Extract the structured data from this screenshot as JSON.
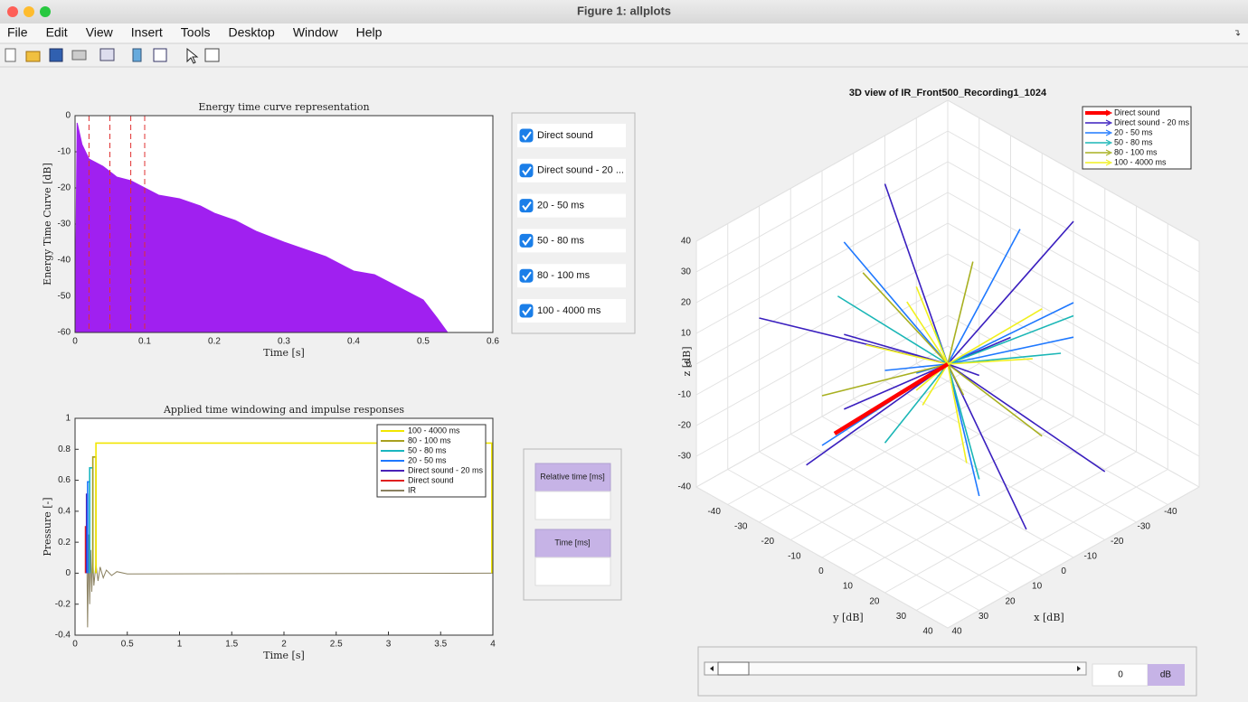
{
  "window": {
    "title": "Figure 1: allplots"
  },
  "menu": [
    "File",
    "Edit",
    "View",
    "Insert",
    "Tools",
    "Desktop",
    "Window",
    "Help"
  ],
  "etc_plot": {
    "type": "area",
    "title": "Energy time curve representation",
    "xlabel": "Time [s]",
    "ylabel": "Energy Time Curve [dB]",
    "xlim": [
      0,
      0.6
    ],
    "ylim": [
      -60,
      0
    ],
    "xticks": [
      0,
      0.1,
      0.2,
      0.3,
      0.4,
      0.5,
      0.6
    ],
    "yticks": [
      -60,
      -50,
      -40,
      -30,
      -20,
      -10,
      0
    ],
    "color": "#a020f0",
    "x": [
      0,
      0.003,
      0.01,
      0.02,
      0.04,
      0.06,
      0.08,
      0.1,
      0.12,
      0.15,
      0.18,
      0.2,
      0.23,
      0.26,
      0.3,
      0.33,
      0.36,
      0.4,
      0.43,
      0.46,
      0.5,
      0.52,
      0.535
    ],
    "values": [
      -60,
      -2,
      -8,
      -12,
      -14,
      -17,
      -18,
      -20,
      -22,
      -23,
      -25,
      -27,
      -29,
      -32,
      -35,
      -37,
      -39,
      -43,
      -44,
      -47,
      -51,
      -56,
      -60
    ],
    "window_boundaries": [
      0,
      0.02,
      0.05,
      0.08,
      0.1
    ],
    "boundary_color": "#e03030"
  },
  "checkboxes": [
    {
      "label": "Direct sound",
      "checked": true
    },
    {
      "label": "Direct sound - 20 ...",
      "checked": true
    },
    {
      "label": "20 - 50 ms",
      "checked": true
    },
    {
      "label": "50 - 80 ms",
      "checked": true
    },
    {
      "label": "80 - 100 ms",
      "checked": true
    },
    {
      "label": "100 - 4000 ms",
      "checked": true
    }
  ],
  "window_plot": {
    "type": "line",
    "title": "Applied time windowing and impulse responses",
    "xlabel": "Time [s]",
    "ylabel": "Pressure [-]",
    "xlim": [
      0,
      4
    ],
    "ylim": [
      -0.4,
      1
    ],
    "xticks": [
      0,
      0.5,
      1,
      1.5,
      2,
      2.5,
      3,
      3.5,
      4
    ],
    "yticks": [
      -0.4,
      -0.2,
      0,
      0.2,
      0.4,
      0.6,
      0.8,
      1
    ],
    "series": [
      {
        "name": "100 - 4000 ms",
        "color": "#f2e600",
        "x": [
          0.2,
          0.2,
          3.99,
          3.99
        ],
        "values": [
          0,
          0.84,
          0.84,
          0
        ]
      },
      {
        "name": "80 - 100 ms",
        "color": "#a8a020",
        "x": [
          0.17,
          0.17,
          0.2,
          0.2
        ],
        "values": [
          0,
          0.75,
          0.75,
          0
        ]
      },
      {
        "name": "50 - 80 ms",
        "color": "#1ab6c0",
        "x": [
          0.14,
          0.14,
          0.17,
          0.17
        ],
        "values": [
          0,
          0.68,
          0.68,
          0
        ]
      },
      {
        "name": "20 - 50 ms",
        "color": "#1e78ff",
        "x": [
          0.12,
          0.12,
          0.14,
          0.14
        ],
        "values": [
          0,
          0.59,
          0.59,
          0
        ]
      },
      {
        "name": "Direct sound - 20 ms",
        "color": "#4a22b8",
        "x": [
          0.11,
          0.11,
          0.12,
          0.12
        ],
        "values": [
          0,
          0.51,
          0.51,
          0
        ]
      },
      {
        "name": "Direct sound",
        "color": "#e02020",
        "x": [
          0.1,
          0.1,
          0.11,
          0.11
        ],
        "values": [
          0,
          0.3,
          0.3,
          0
        ]
      },
      {
        "name": "IR",
        "color": "#8a8060",
        "x": [
          0.1,
          0.11,
          0.12,
          0.13,
          0.14,
          0.15,
          0.16,
          0.17,
          0.18,
          0.2,
          0.22,
          0.24,
          0.27,
          0.3,
          0.35,
          0.4,
          0.5,
          4
        ],
        "values": [
          0,
          0.3,
          -0.35,
          0.25,
          -0.2,
          0.15,
          -0.12,
          0.1,
          -0.08,
          0.06,
          -0.05,
          0.04,
          -0.03,
          0.02,
          -0.015,
          0.01,
          -0.005,
          0
        ]
      }
    ]
  },
  "table": {
    "headers": [
      "Relative time [ms]",
      "Time [ms]"
    ]
  },
  "view3d": {
    "type": "quiver3",
    "title": "3D view of IR_Front500_Recording1_1024",
    "xlabel": "x [dB]",
    "ylabel": "y [dB]",
    "zlabel": "z [dB]",
    "xlim": [
      -40,
      40
    ],
    "ylim": [
      -40,
      40
    ],
    "zlim": [
      -40,
      40
    ],
    "xticks": [
      -40,
      -30,
      -20,
      -10,
      0,
      10,
      20,
      30,
      40
    ],
    "yticks": [
      -40,
      -30,
      -20,
      -10,
      0,
      10,
      20,
      30,
      40
    ],
    "zticks": [
      -40,
      -30,
      -20,
      -10,
      0,
      10,
      20,
      30,
      40
    ],
    "series": [
      {
        "name": "Direct sound",
        "color": "#ff0000",
        "vectors": [
          [
            29,
            -7,
            -10
          ]
        ]
      },
      {
        "name": "Direct sound - 20 ms",
        "color": "#3a1fbf",
        "vectors": [
          [
            -30,
            10,
            35
          ],
          [
            25,
            -20,
            -30
          ],
          [
            10,
            35,
            -28
          ],
          [
            -35,
            -15,
            -20
          ],
          [
            20,
            30,
            25
          ],
          [
            -15,
            -35,
            30
          ],
          [
            38,
            5,
            10
          ],
          [
            -5,
            -38,
            -15
          ],
          [
            30,
            -30,
            15
          ],
          [
            -25,
            25,
            -35
          ]
        ]
      },
      {
        "name": "20 - 50 ms",
        "color": "#1e78ff",
        "vectors": [
          [
            -28,
            -5,
            25
          ],
          [
            15,
            25,
            -20
          ],
          [
            -20,
            20,
            20
          ],
          [
            30,
            -10,
            -15
          ],
          [
            -10,
            -30,
            -25
          ],
          [
            25,
            15,
            20
          ],
          [
            -32,
            8,
            -5
          ],
          [
            8,
            -25,
            30
          ]
        ]
      },
      {
        "name": "50 - 80 ms",
        "color": "#1ab6b6",
        "vectors": [
          [
            -25,
            15,
            10
          ],
          [
            20,
            -15,
            25
          ],
          [
            12,
            22,
            -18
          ],
          [
            -18,
            -22,
            -12
          ],
          [
            28,
            8,
            -5
          ],
          [
            -8,
            28,
            15
          ]
        ]
      },
      {
        "name": "80 - 100 ms",
        "color": "#a8b020",
        "vectors": [
          [
            -20,
            -12,
            15
          ],
          [
            15,
            20,
            10
          ],
          [
            -12,
            18,
            -20
          ],
          [
            22,
            -18,
            -8
          ],
          [
            5,
            -22,
            20
          ]
        ]
      },
      {
        "name": "100 - 4000 ms",
        "color": "#f0f020",
        "vectors": [
          [
            -22,
            5,
            -8
          ],
          [
            18,
            -8,
            12
          ],
          [
            -10,
            -20,
            8
          ],
          [
            12,
            18,
            -15
          ],
          [
            -15,
            15,
            18
          ],
          [
            20,
            12,
            5
          ],
          [
            -5,
            -15,
            -20
          ],
          [
            8,
            -5,
            22
          ]
        ]
      }
    ]
  },
  "slider": {
    "value": 0,
    "unit": "dB"
  }
}
